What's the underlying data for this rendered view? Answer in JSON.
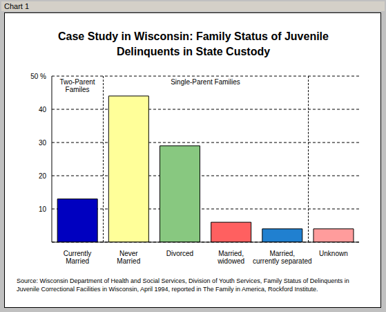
{
  "chart_data": {
    "type": "bar",
    "window_title": "Chart 1",
    "title": "Case Study in Wisconsin: Family Status of Juvenile Delinquents in State Custody",
    "categories": [
      "Currently Married",
      "Never Married",
      "Divorced",
      "Married, widowed",
      "Married, currently separated",
      "Unknown"
    ],
    "values": [
      13,
      44,
      29,
      6,
      4,
      4
    ],
    "colors": [
      "#0000c0",
      "#ffff99",
      "#88c880",
      "#ff6060",
      "#2080d0",
      "#ff9c9c"
    ],
    "ylim": [
      0,
      50
    ],
    "yticks": [
      10,
      20,
      30,
      40,
      {
        "value": 50,
        "label": "50 %"
      }
    ],
    "grid": true,
    "annotations": [
      "Two-Parent Familes",
      "Single-Parent Families"
    ],
    "source": "Source: Wisconsin Department of Health and Social Services, Division of Youth Services, Family Status of Delinquents in Juvenile Correctional Facilities in Wisconsin, April 1994, reported in The Family in America, Rockford Institute."
  }
}
